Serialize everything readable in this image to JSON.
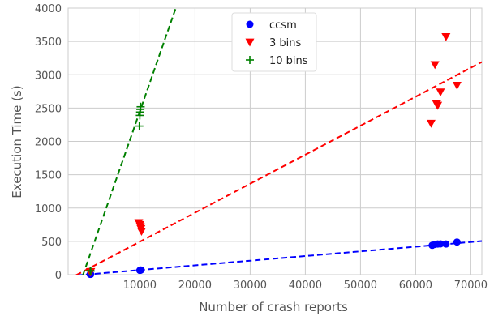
{
  "chart_data": {
    "type": "scatter",
    "title": "",
    "xlabel": "Number of crash reports",
    "ylabel": "Execution Time (s)",
    "xlim": [
      -3000,
      72000
    ],
    "ylim": [
      0,
      4000
    ],
    "x_ticks": [
      10000,
      20000,
      30000,
      40000,
      50000,
      60000,
      70000
    ],
    "y_ticks": [
      0,
      500,
      1000,
      1500,
      2000,
      2500,
      3000,
      3500,
      4000
    ],
    "grid": true,
    "legend_position": "top-center",
    "series": [
      {
        "name": "ccsm",
        "marker": "circle",
        "color": "#0000ff",
        "points": [
          {
            "x": 1000,
            "y": 5
          },
          {
            "x": 1100,
            "y": 6
          },
          {
            "x": 10000,
            "y": 65
          },
          {
            "x": 10100,
            "y": 68
          },
          {
            "x": 10200,
            "y": 70
          },
          {
            "x": 63000,
            "y": 440
          },
          {
            "x": 63500,
            "y": 455
          },
          {
            "x": 64000,
            "y": 460
          },
          {
            "x": 64500,
            "y": 462
          },
          {
            "x": 65500,
            "y": 460
          },
          {
            "x": 67500,
            "y": 490
          }
        ],
        "fit_line": {
          "slope": 0.007,
          "intercept": 0,
          "style": "dashed"
        }
      },
      {
        "name": "3 bins",
        "marker": "triangle-down",
        "color": "#ff0000",
        "points": [
          {
            "x": 1000,
            "y": 40
          },
          {
            "x": 1100,
            "y": 45
          },
          {
            "x": 9800,
            "y": 780
          },
          {
            "x": 10000,
            "y": 750
          },
          {
            "x": 10100,
            "y": 720
          },
          {
            "x": 10200,
            "y": 690
          },
          {
            "x": 10300,
            "y": 650
          },
          {
            "x": 62800,
            "y": 2270
          },
          {
            "x": 63500,
            "y": 3150
          },
          {
            "x": 63800,
            "y": 2560
          },
          {
            "x": 64000,
            "y": 2540
          },
          {
            "x": 64500,
            "y": 2740
          },
          {
            "x": 65500,
            "y": 3570
          },
          {
            "x": 67500,
            "y": 2840
          }
        ],
        "fit_line": {
          "slope": 0.0435,
          "intercept": 60,
          "style": "dashed"
        }
      },
      {
        "name": "10 bins",
        "marker": "plus",
        "color": "#008000",
        "points": [
          {
            "x": 1000,
            "y": 60
          },
          {
            "x": 1100,
            "y": 55
          },
          {
            "x": 9900,
            "y": 2230
          },
          {
            "x": 10000,
            "y": 2390
          },
          {
            "x": 10050,
            "y": 2440
          },
          {
            "x": 10100,
            "y": 2480
          },
          {
            "x": 10150,
            "y": 2520
          }
        ],
        "fit_line": {
          "slope": 0.238,
          "intercept": 70,
          "style": "dashed"
        }
      }
    ]
  }
}
